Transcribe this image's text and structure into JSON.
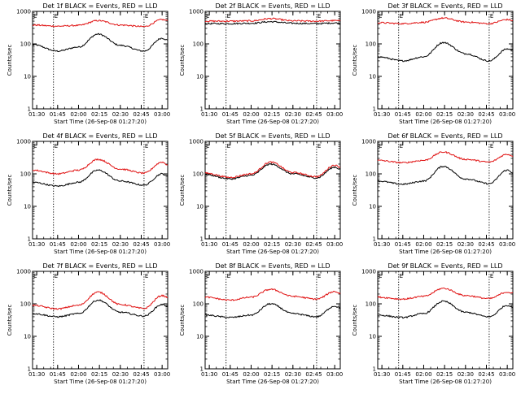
{
  "colors": {
    "events": "#000000",
    "lld": "#e01010",
    "background": "#ffffff",
    "axes": "#000000"
  },
  "chart_data": [
    {
      "type": "line",
      "title": "Det 1f BLACK = Events, RED = LLD",
      "xlabel": "Start Time (26-Sep-08 01:27:20)",
      "ylabel": "Counts/sec",
      "xticks": [
        "01:30",
        "01:45",
        "02:00",
        "02:15",
        "02:30",
        "02:45",
        "03:00"
      ],
      "yticks": [
        "1",
        "10",
        "100",
        "1000"
      ],
      "ylim": [
        1,
        1000
      ],
      "yscale": "log",
      "marker_label": "E",
      "markers": [
        "01:42",
        "02:47"
      ],
      "x": [
        "01:27",
        "01:45",
        "02:00",
        "02:14",
        "02:30",
        "02:47",
        "03:00",
        "03:04"
      ],
      "series": [
        {
          "name": "Events",
          "color": "#000000",
          "values": [
            95,
            60,
            80,
            200,
            90,
            60,
            150,
            130
          ]
        },
        {
          "name": "LLD",
          "color": "#e01010",
          "values": [
            380,
            350,
            370,
            520,
            380,
            340,
            560,
            520
          ]
        }
      ]
    },
    {
      "type": "line",
      "title": "Det 2f BLACK = Events, RED = LLD",
      "xlabel": "Start Time (26-Sep-08 01:27:20)",
      "ylabel": "Counts/sec",
      "xticks": [
        "01:30",
        "01:45",
        "02:00",
        "02:15",
        "02:30",
        "02:45",
        "03:00"
      ],
      "yticks": [
        "1",
        "10",
        "100",
        "1000"
      ],
      "ylim": [
        1,
        1000
      ],
      "yscale": "log",
      "marker_label": "E",
      "markers": [
        "01:42",
        "02:47"
      ],
      "x": [
        "01:27",
        "01:45",
        "02:00",
        "02:14",
        "02:30",
        "02:47",
        "03:00",
        "03:04"
      ],
      "series": [
        {
          "name": "Events",
          "color": "#000000",
          "values": [
            420,
            420,
            430,
            480,
            430,
            420,
            440,
            430
          ]
        },
        {
          "name": "LLD",
          "color": "#e01010",
          "values": [
            500,
            500,
            510,
            600,
            510,
            500,
            520,
            510
          ]
        }
      ]
    },
    {
      "type": "line",
      "title": "Det 3f BLACK = Events, RED = LLD",
      "xlabel": "Start Time (26-Sep-08 01:27:20)",
      "ylabel": "Counts/sec",
      "xticks": [
        "01:30",
        "01:45",
        "02:00",
        "02:15",
        "02:30",
        "02:45",
        "03:00"
      ],
      "yticks": [
        "1",
        "10",
        "100",
        "1000"
      ],
      "ylim": [
        1,
        1000
      ],
      "yscale": "log",
      "marker_label": "E",
      "markers": [
        "01:42",
        "02:47"
      ],
      "x": [
        "01:27",
        "01:45",
        "02:00",
        "02:14",
        "02:30",
        "02:47",
        "03:00",
        "03:04"
      ],
      "series": [
        {
          "name": "Events",
          "color": "#000000",
          "values": [
            40,
            30,
            40,
            110,
            50,
            30,
            70,
            65
          ]
        },
        {
          "name": "LLD",
          "color": "#e01010",
          "values": [
            450,
            420,
            460,
            620,
            470,
            420,
            560,
            520
          ]
        }
      ]
    },
    {
      "type": "line",
      "title": "Det 4f BLACK = Events, RED = LLD",
      "xlabel": "Start Time (26-Sep-08 01:27:20)",
      "ylabel": "Counts/sec",
      "xticks": [
        "01:30",
        "01:45",
        "02:00",
        "02:15",
        "02:30",
        "02:45",
        "03:00"
      ],
      "yticks": [
        "1",
        "10",
        "100",
        "1000"
      ],
      "ylim": [
        1,
        1000
      ],
      "yscale": "log",
      "marker_label": "E",
      "markers": [
        "01:42",
        "02:47"
      ],
      "x": [
        "01:27",
        "01:45",
        "02:00",
        "02:14",
        "02:30",
        "02:47",
        "03:00",
        "03:04"
      ],
      "series": [
        {
          "name": "Events",
          "color": "#000000",
          "values": [
            55,
            42,
            55,
            130,
            60,
            45,
            100,
            85
          ]
        },
        {
          "name": "LLD",
          "color": "#e01010",
          "values": [
            130,
            100,
            130,
            280,
            140,
            105,
            230,
            190
          ]
        }
      ]
    },
    {
      "type": "line",
      "title": "Det 5f BLACK = Events, RED = LLD",
      "xlabel": "Start Time (26-Sep-08 01:27:20)",
      "ylabel": "Counts/sec",
      "xticks": [
        "01:30",
        "01:45",
        "02:00",
        "02:15",
        "02:30",
        "02:45",
        "03:00"
      ],
      "yticks": [
        "1",
        "10",
        "100",
        "1000"
      ],
      "ylim": [
        1,
        1000
      ],
      "yscale": "log",
      "marker_label": "E",
      "markers": [
        "01:42",
        "02:47"
      ],
      "x": [
        "01:27",
        "01:45",
        "02:00",
        "02:14",
        "02:30",
        "02:47",
        "03:00",
        "03:04"
      ],
      "series": [
        {
          "name": "Events",
          "color": "#000000",
          "values": [
            95,
            70,
            90,
            200,
            100,
            75,
            160,
            140
          ]
        },
        {
          "name": "LLD",
          "color": "#e01010",
          "values": [
            105,
            78,
            100,
            230,
            110,
            82,
            185,
            160
          ]
        }
      ]
    },
    {
      "type": "line",
      "title": "Det 6f BLACK = Events, RED = LLD",
      "xlabel": "Start Time (26-Sep-08 01:27:20)",
      "ylabel": "Counts/sec",
      "xticks": [
        "01:30",
        "01:45",
        "02:00",
        "02:15",
        "02:30",
        "02:45",
        "03:00"
      ],
      "yticks": [
        "1",
        "10",
        "100",
        "1000"
      ],
      "ylim": [
        1,
        1000
      ],
      "yscale": "log",
      "marker_label": "E",
      "markers": [
        "01:42",
        "02:47"
      ],
      "x": [
        "01:27",
        "01:45",
        "02:00",
        "02:14",
        "02:30",
        "02:47",
        "03:00",
        "03:04"
      ],
      "series": [
        {
          "name": "Events",
          "color": "#000000",
          "values": [
            60,
            48,
            60,
            170,
            70,
            50,
            130,
            110
          ]
        },
        {
          "name": "LLD",
          "color": "#e01010",
          "values": [
            260,
            220,
            260,
            470,
            280,
            230,
            400,
            360
          ]
        }
      ]
    },
    {
      "type": "line",
      "title": "Det 7f BLACK = Events, RED = LLD",
      "xlabel": "Start Time (26-Sep-08 01:27:20)",
      "ylabel": "Counts/sec",
      "xticks": [
        "01:30",
        "01:45",
        "02:00",
        "02:15",
        "02:30",
        "02:45",
        "03:00"
      ],
      "yticks": [
        "1",
        "10",
        "100",
        "1000"
      ],
      "ylim": [
        1,
        1000
      ],
      "yscale": "log",
      "marker_label": "E",
      "markers": [
        "01:42",
        "02:47"
      ],
      "x": [
        "01:27",
        "01:45",
        "02:00",
        "02:14",
        "02:30",
        "02:47",
        "03:00",
        "03:04"
      ],
      "series": [
        {
          "name": "Events",
          "color": "#000000",
          "values": [
            50,
            40,
            50,
            130,
            55,
            42,
            95,
            85
          ]
        },
        {
          "name": "LLD",
          "color": "#e01010",
          "values": [
            90,
            70,
            90,
            230,
            95,
            72,
            180,
            160
          ]
        }
      ]
    },
    {
      "type": "line",
      "title": "Det 8f BLACK = Events, RED = LLD",
      "xlabel": "Start Time (26-Sep-08 01:27:20)",
      "ylabel": "Counts/sec",
      "xticks": [
        "01:30",
        "01:45",
        "02:00",
        "02:15",
        "02:30",
        "02:45",
        "03:00"
      ],
      "yticks": [
        "1",
        "10",
        "100",
        "1000"
      ],
      "ylim": [
        1,
        1000
      ],
      "yscale": "log",
      "marker_label": "E",
      "markers": [
        "01:42",
        "02:47"
      ],
      "x": [
        "01:27",
        "01:45",
        "02:00",
        "02:14",
        "02:30",
        "02:47",
        "03:00",
        "03:04"
      ],
      "series": [
        {
          "name": "Events",
          "color": "#000000",
          "values": [
            45,
            38,
            45,
            100,
            50,
            40,
            85,
            75
          ]
        },
        {
          "name": "LLD",
          "color": "#e01010",
          "values": [
            160,
            130,
            160,
            280,
            170,
            140,
            240,
            210
          ]
        }
      ]
    },
    {
      "type": "line",
      "title": "Det 9f BLACK = Events, RED = LLD",
      "xlabel": "Start Time (26-Sep-08 01:27:20)",
      "ylabel": "Counts/sec",
      "xticks": [
        "01:30",
        "01:45",
        "02:00",
        "02:15",
        "02:30",
        "02:45",
        "03:00"
      ],
      "yticks": [
        "1",
        "10",
        "100",
        "1000"
      ],
      "ylim": [
        1,
        1000
      ],
      "yscale": "log",
      "marker_label": "E",
      "markers": [
        "01:42",
        "02:47"
      ],
      "x": [
        "01:27",
        "01:45",
        "02:00",
        "02:14",
        "02:30",
        "02:47",
        "03:00",
        "03:04"
      ],
      "series": [
        {
          "name": "Events",
          "color": "#000000",
          "values": [
            45,
            38,
            50,
            120,
            55,
            40,
            90,
            80
          ]
        },
        {
          "name": "LLD",
          "color": "#e01010",
          "values": [
            160,
            140,
            170,
            300,
            180,
            145,
            230,
            210
          ]
        }
      ]
    }
  ]
}
